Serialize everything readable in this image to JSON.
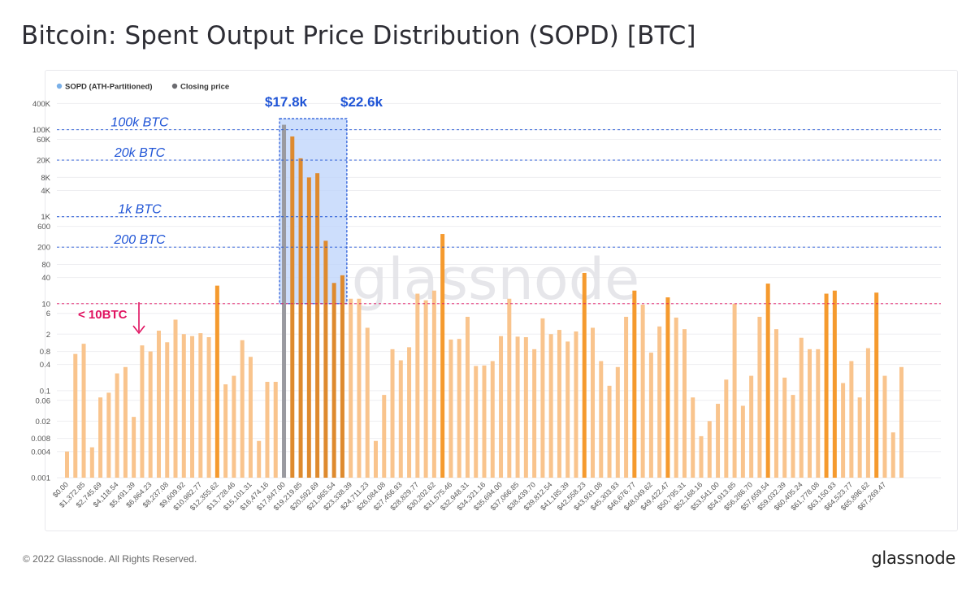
{
  "page": {
    "title": "Bitcoin: Spent Output Price Distribution (SOPD) [BTC]",
    "footer": "© 2022 Glassnode. All Rights Reserved.",
    "brand": "glassnode",
    "watermark": "glassnode"
  },
  "colors": {
    "bar": "#f9c48d",
    "bar_highlight": "#f59a2e",
    "bar_in_range": "#de8a2e",
    "closing": "#9a9aa0",
    "band_line": "#1f54d6",
    "alert": "#e0115f"
  },
  "chart_data": {
    "type": "bar",
    "title": "Bitcoin: Spent Output Price Distribution (SOPD) [BTC]",
    "xlabel": "",
    "ylabel": "",
    "yscale": "log",
    "ylim": [
      0.001,
      600000
    ],
    "legend": {
      "placement": "top-left",
      "entries": [
        "SOPD (ATH-Partitioned)",
        "Closing price"
      ]
    },
    "y_ticks": [
      {
        "value": 400000,
        "label": "400K"
      },
      {
        "value": 100000,
        "label": "100K"
      },
      {
        "value": 60000,
        "label": "60K"
      },
      {
        "value": 20000,
        "label": "20K"
      },
      {
        "value": 8000,
        "label": "8K"
      },
      {
        "value": 4000,
        "label": "4K"
      },
      {
        "value": 1000,
        "label": "1K"
      },
      {
        "value": 600,
        "label": "600"
      },
      {
        "value": 200,
        "label": "200"
      },
      {
        "value": 80,
        "label": "80"
      },
      {
        "value": 40,
        "label": "40"
      },
      {
        "value": 10,
        "label": "10"
      },
      {
        "value": 6,
        "label": "6"
      },
      {
        "value": 2,
        "label": "2"
      },
      {
        "value": 0.8,
        "label": "0.8"
      },
      {
        "value": 0.4,
        "label": "0.4"
      },
      {
        "value": 0.1,
        "label": "0.1"
      },
      {
        "value": 0.06,
        "label": "0.06"
      },
      {
        "value": 0.02,
        "label": "0.02"
      },
      {
        "value": 0.008,
        "label": "0.008"
      },
      {
        "value": 0.004,
        "label": "0.004"
      },
      {
        "value": 0.001,
        "label": "0.001"
      }
    ],
    "x_tick_labels": [
      "$0.00",
      "$1,372.85",
      "$2,745.69",
      "$4,118.54",
      "$5,491.39",
      "$6,864.23",
      "$8,237.08",
      "$9,609.92",
      "$10,982.77",
      "$12,355.62",
      "$13,728.46",
      "$15,101.31",
      "$16,474.16",
      "$17,847.00",
      "$19,219.85",
      "$20,592.69",
      "$21,965.54",
      "$23,338.39",
      "$24,711.23",
      "$26,084.08",
      "$27,456.93",
      "$28,829.77",
      "$30,202.62",
      "$31,575.46",
      "$32,948.31",
      "$34,321.16",
      "$35,694.00",
      "$37,066.85",
      "$38,439.70",
      "$39,812.54",
      "$41,185.39",
      "$42,558.23",
      "$43,931.08",
      "$45,303.93",
      "$46,676.77",
      "$48,049.62",
      "$49,422.47",
      "$50,795.31",
      "$52,168.16",
      "$53,541.00",
      "$54,913.85",
      "$56,286.70",
      "$57,659.54",
      "$59,032.39",
      "$60,405.24",
      "$61,778.08",
      "$63,150.93",
      "$64,523.77",
      "$65,896.62",
      "$67,269.47"
    ],
    "x_tick_every": 2,
    "closing_price_index": 26,
    "series": [
      {
        "name": "SOPD (ATH-Partitioned)",
        "values": [
          0.004,
          0.7,
          1.2,
          0.005,
          0.07,
          0.09,
          0.25,
          0.35,
          0.025,
          1.1,
          0.8,
          2.4,
          1.3,
          4.3,
          2.0,
          1.8,
          2.1,
          1.7,
          26,
          0.14,
          0.22,
          1.45,
          0.6,
          0.007,
          0.16,
          0.16,
          130000,
          70000,
          22000,
          8000,
          10000,
          280,
          30,
          45,
          13,
          13,
          2.8,
          0.007,
          0.08,
          0.9,
          0.5,
          1.0,
          17,
          12,
          20,
          400,
          1.5,
          1.55,
          5.0,
          0.37,
          0.38,
          0.48,
          1.8,
          13,
          1.75,
          1.7,
          0.9,
          4.6,
          2.0,
          2.5,
          1.35,
          2.3,
          51,
          2.8,
          0.48,
          0.13,
          0.35,
          5.0,
          20,
          9.5,
          0.75,
          3.0,
          14,
          4.8,
          2.6,
          0.07,
          0.009,
          0.02,
          0.05,
          0.18,
          10,
          0.045,
          0.22,
          5.0,
          29,
          2.6,
          0.2,
          0.08,
          1.65,
          0.9,
          0.9,
          17,
          20,
          0.15,
          0.48,
          0.07,
          0.95,
          18,
          0.22,
          0.011,
          0.35
        ],
        "highlighted_indices": [
          18,
          31,
          45,
          62,
          68,
          72,
          84,
          91,
          92,
          97
        ]
      }
    ],
    "annotations": {
      "bands": [
        {
          "value": 100000,
          "label": "100k BTC"
        },
        {
          "value": 20000,
          "label": "20k BTC"
        },
        {
          "value": 1000,
          "label": "1k BTC"
        },
        {
          "value": 200,
          "label": "200 BTC"
        }
      ],
      "threshold": {
        "value": 10,
        "label": "< 10BTC"
      },
      "range_box": {
        "from_label": "$17.8k",
        "to_label": "$22.6k",
        "from_index": 26,
        "to_index": 33,
        "ymin": 10,
        "ymax": 180000
      }
    }
  }
}
